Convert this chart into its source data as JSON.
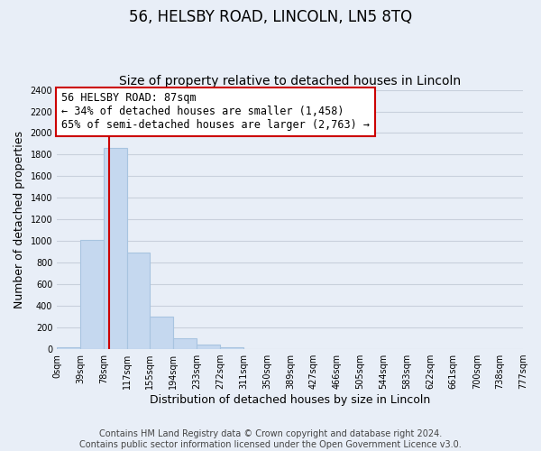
{
  "title": "56, HELSBY ROAD, LINCOLN, LN5 8TQ",
  "subtitle": "Size of property relative to detached houses in Lincoln",
  "xlabel": "Distribution of detached houses by size in Lincoln",
  "ylabel": "Number of detached properties",
  "bar_edges": [
    0,
    39,
    78,
    117,
    155,
    194,
    233,
    272,
    311,
    350,
    389,
    427,
    466,
    505,
    544,
    583,
    622,
    661,
    700,
    738,
    777
  ],
  "bar_heights": [
    20,
    1010,
    1860,
    890,
    300,
    100,
    45,
    20,
    0,
    0,
    0,
    0,
    0,
    0,
    0,
    0,
    0,
    0,
    0,
    0
  ],
  "bar_color": "#c5d8ef",
  "bar_edge_color": "#a8c4e0",
  "vline_x": 87,
  "vline_color": "#cc0000",
  "annotation_line1": "56 HELSBY ROAD: 87sqm",
  "annotation_line2": "← 34% of detached houses are smaller (1,458)",
  "annotation_line3": "65% of semi-detached houses are larger (2,763) →",
  "annotation_box_color": "#ffffff",
  "annotation_box_edge": "#cc0000",
  "ylim": [
    0,
    2400
  ],
  "yticks": [
    0,
    200,
    400,
    600,
    800,
    1000,
    1200,
    1400,
    1600,
    1800,
    2000,
    2200,
    2400
  ],
  "xtick_labels": [
    "0sqm",
    "39sqm",
    "78sqm",
    "117sqm",
    "155sqm",
    "194sqm",
    "233sqm",
    "272sqm",
    "311sqm",
    "350sqm",
    "389sqm",
    "427sqm",
    "466sqm",
    "505sqm",
    "544sqm",
    "583sqm",
    "622sqm",
    "661sqm",
    "700sqm",
    "738sqm",
    "777sqm"
  ],
  "footer": "Contains HM Land Registry data © Crown copyright and database right 2024.\nContains public sector information licensed under the Open Government Licence v3.0.",
  "bg_color": "#e8eef7",
  "plot_bg_color": "#e8eef7",
  "grid_color": "#c8d0dc",
  "title_fontsize": 12,
  "subtitle_fontsize": 10,
  "axis_label_fontsize": 9,
  "tick_fontsize": 7,
  "footer_fontsize": 7,
  "annotation_fontsize": 8.5
}
